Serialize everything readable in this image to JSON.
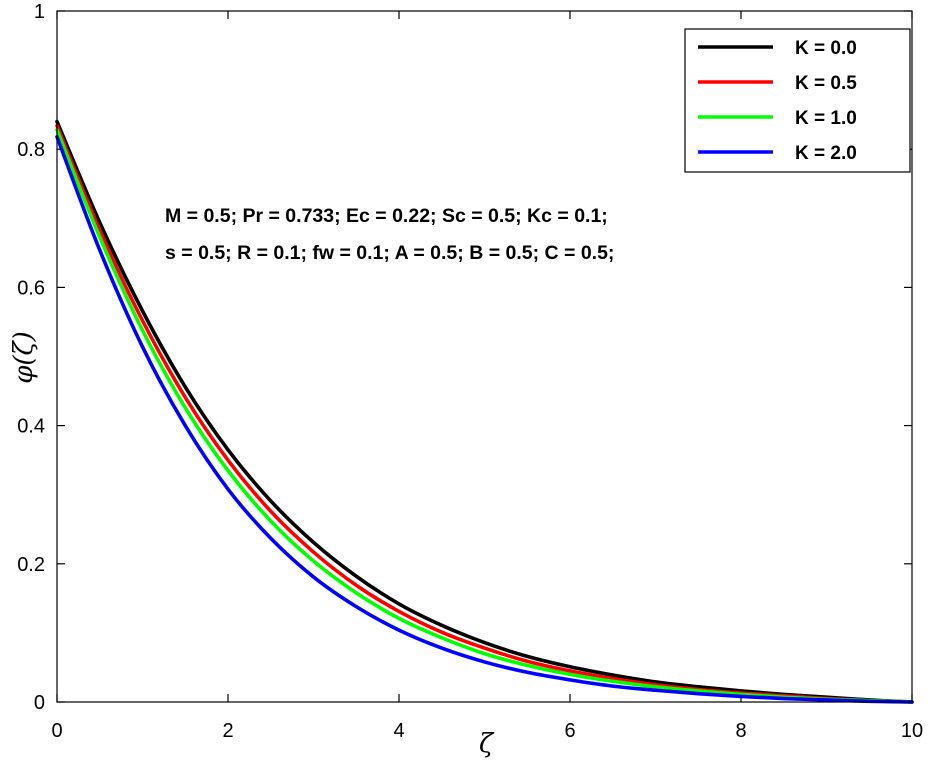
{
  "chart_data": {
    "type": "line",
    "title": "",
    "xlabel": "ζ",
    "ylabel": "φ(ζ)",
    "xlim": [
      0,
      10
    ],
    "ylim": [
      0,
      1
    ],
    "x_ticks": [
      0,
      2,
      4,
      6,
      8,
      10
    ],
    "y_ticks": [
      0,
      0.2,
      0.4,
      0.6,
      0.8,
      1
    ],
    "x_tick_labels": [
      "0",
      "2",
      "4",
      "6",
      "8",
      "10"
    ],
    "y_tick_labels": [
      "0",
      "0.2",
      "0.4",
      "0.6",
      "0.8",
      "1"
    ],
    "grid": false,
    "legend_position": "top-right",
    "x": [
      0,
      0.5,
      1,
      1.5,
      2,
      2.5,
      3,
      3.5,
      4,
      4.5,
      5,
      5.5,
      6,
      6.5,
      7,
      7.5,
      8,
      8.5,
      9,
      9.5,
      10
    ],
    "series": [
      {
        "name": "K = 0.0",
        "color": "#000000",
        "values": [
          0.84,
          0.694,
          0.566,
          0.456,
          0.365,
          0.291,
          0.231,
          0.182,
          0.142,
          0.111,
          0.086,
          0.066,
          0.051,
          0.039,
          0.029,
          0.022,
          0.016,
          0.011,
          0.007,
          0.003,
          0.0
        ]
      },
      {
        "name": "K = 0.5",
        "color": "#ff0000",
        "values": [
          0.834,
          0.683,
          0.552,
          0.441,
          0.35,
          0.276,
          0.217,
          0.169,
          0.131,
          0.101,
          0.078,
          0.059,
          0.045,
          0.034,
          0.025,
          0.018,
          0.013,
          0.009,
          0.005,
          0.002,
          0.0
        ]
      },
      {
        "name": "K = 1.0",
        "color": "#00ff00",
        "values": [
          0.828,
          0.673,
          0.538,
          0.426,
          0.335,
          0.262,
          0.204,
          0.158,
          0.121,
          0.093,
          0.07,
          0.053,
          0.04,
          0.03,
          0.022,
          0.016,
          0.011,
          0.007,
          0.004,
          0.002,
          0.0
        ]
      },
      {
        "name": "K = 2.0",
        "color": "#0000ff",
        "values": [
          0.818,
          0.654,
          0.514,
          0.4,
          0.308,
          0.237,
          0.181,
          0.138,
          0.104,
          0.078,
          0.058,
          0.043,
          0.032,
          0.023,
          0.017,
          0.012,
          0.008,
          0.005,
          0.003,
          0.001,
          0.0
        ]
      }
    ],
    "annotations": [
      "M = 0.5; Pr = 0.733; Ec = 0.22; Sc = 0.5; Kc = 0.1;",
      "s = 0.5; R = 0.1; fw = 0.1; A = 0.5; B = 0.5; C = 0.5;"
    ]
  }
}
